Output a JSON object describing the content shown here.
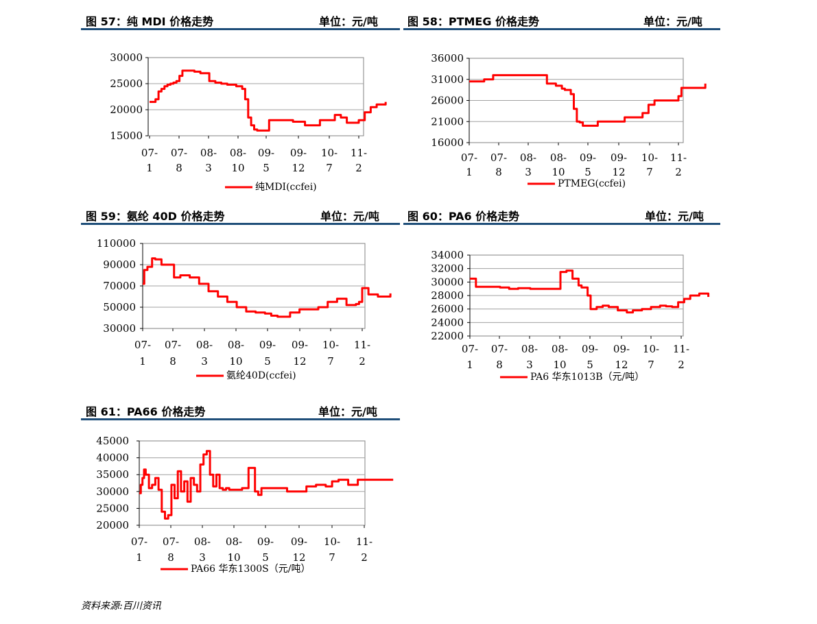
{
  "panels": [
    {
      "title": "图 57：纯 MDI 价格走势",
      "unit": "单位：元/吨"
    },
    {
      "title": "图 58：PTMEG 价格走势",
      "unit": "单位：元/吨"
    },
    {
      "title": "图 59：氨纶 40D 价格走势",
      "unit": "单位：元/吨"
    },
    {
      "title": "图 60：PA6 价格走势",
      "unit": "单位：元/吨"
    },
    {
      "title": "图 61：PA66 价格走势",
      "unit": "单位：元/吨"
    }
  ],
  "source": "资料来源:百川资讯",
  "chart_data": [
    {
      "type": "line",
      "title": "图 57：纯 MDI 价格走势",
      "categories": [
        [
          "07-",
          "1"
        ],
        [
          "07-",
          "8"
        ],
        [
          "08-",
          "3"
        ],
        [
          "08-",
          "10"
        ],
        [
          "09-",
          "5"
        ],
        [
          "09-",
          "12"
        ],
        [
          "10-",
          "7"
        ],
        [
          "11-",
          "2"
        ]
      ],
      "yticks": [
        "30000",
        "25000",
        "20000",
        "15000"
      ],
      "ylim": [
        15000,
        30000
      ],
      "grid": true,
      "legend_position": "bottom",
      "color": "#ff0000",
      "series": [
        {
          "name": "纯MDI(ccfei)",
          "x": [
            0,
            0.1,
            0.2,
            0.3,
            0.4,
            0.5,
            0.6,
            0.7,
            0.8,
            0.9,
            1.0,
            1.1,
            1.3,
            1.5,
            1.7,
            2.0,
            2.2,
            2.4,
            2.6,
            2.9,
            3.1,
            3.2,
            3.3,
            3.4,
            3.5,
            3.6,
            3.8,
            4.0,
            4.2,
            4.5,
            4.8,
            5.0,
            5.2,
            5.5,
            5.7,
            6.0,
            6.2,
            6.4,
            6.6,
            6.8,
            7.0,
            7.2,
            7.4,
            7.6,
            7.9
          ],
          "y": [
            21500,
            21500,
            22000,
            23500,
            24000,
            24500,
            24800,
            25000,
            25200,
            25500,
            26500,
            27500,
            27500,
            27300,
            27000,
            25500,
            25200,
            25000,
            24800,
            24500,
            24000,
            22000,
            18500,
            17000,
            16200,
            16000,
            16000,
            18000,
            18000,
            18000,
            17700,
            17700,
            17000,
            17000,
            18000,
            18000,
            19000,
            18500,
            17500,
            17500,
            18000,
            19500,
            20500,
            21000,
            21500
          ]
        }
      ]
    },
    {
      "type": "line",
      "title": "图 58：PTMEG 价格走势",
      "categories": [
        [
          "07-",
          "1"
        ],
        [
          "07-",
          "8"
        ],
        [
          "08-",
          "3"
        ],
        [
          "08-",
          "10"
        ],
        [
          "09-",
          "5"
        ],
        [
          "09-",
          "12"
        ],
        [
          "10-",
          "7"
        ],
        [
          "11-",
          "2"
        ]
      ],
      "yticks": [
        "36000",
        "31000",
        "26000",
        "21000",
        "16000"
      ],
      "ylim": [
        16000,
        36000
      ],
      "grid": true,
      "legend_position": "bottom",
      "color": "#ff0000",
      "series": [
        {
          "name": "PTMEG(ccfei)",
          "x": [
            0,
            0.3,
            0.5,
            0.7,
            0.8,
            1.5,
            2.0,
            2.4,
            2.6,
            2.9,
            3.1,
            3.2,
            3.3,
            3.4,
            3.5,
            3.6,
            3.7,
            3.8,
            4.0,
            4.3,
            4.6,
            4.9,
            5.2,
            5.5,
            5.8,
            6.0,
            6.2,
            6.4,
            6.8,
            6.9,
            7.0,
            7.1,
            7.3,
            7.6,
            7.9
          ],
          "y": [
            30500,
            30500,
            31000,
            31000,
            32000,
            32000,
            32000,
            32000,
            30000,
            29500,
            28800,
            28500,
            28500,
            27500,
            24000,
            21000,
            20800,
            20000,
            20000,
            21000,
            21000,
            21000,
            22000,
            22000,
            23000,
            25000,
            26000,
            26000,
            26000,
            26000,
            27000,
            29000,
            29000,
            29000,
            30000
          ]
        }
      ]
    },
    {
      "type": "line",
      "title": "图 59：氨纶 40D 价格走势",
      "categories": [
        [
          "07-",
          "1"
        ],
        [
          "07-",
          "8"
        ],
        [
          "08-",
          "3"
        ],
        [
          "08-",
          "10"
        ],
        [
          "09-",
          "5"
        ],
        [
          "09-",
          "12"
        ],
        [
          "10-",
          "7"
        ],
        [
          "11-",
          "2"
        ]
      ],
      "yticks": [
        "110000",
        "90000",
        "70000",
        "50000",
        "30000"
      ],
      "ylim": [
        30000,
        110000
      ],
      "grid": true,
      "legend_position": "bottom",
      "color": "#ff0000",
      "series": [
        {
          "name": "氨纶40D(ccfei)",
          "x": [
            0,
            0.05,
            0.15,
            0.3,
            0.4,
            0.6,
            1.0,
            1.2,
            1.5,
            1.8,
            2.1,
            2.4,
            2.7,
            3.0,
            3.3,
            3.6,
            3.9,
            4.1,
            4.3,
            4.7,
            5.0,
            5.3,
            5.6,
            5.9,
            6.2,
            6.5,
            6.8,
            6.9,
            7.0,
            7.2,
            7.5,
            7.9
          ],
          "y": [
            72000,
            85000,
            88000,
            96000,
            95000,
            90000,
            78000,
            80000,
            78000,
            72000,
            65000,
            60000,
            55000,
            50000,
            46000,
            45000,
            44000,
            42000,
            41000,
            45000,
            48000,
            48000,
            50000,
            55000,
            58000,
            52000,
            53000,
            55000,
            68000,
            62000,
            60000,
            63000
          ]
        }
      ]
    },
    {
      "type": "line",
      "title": "图 60：PA6 价格走势",
      "categories": [
        [
          "07-",
          "1"
        ],
        [
          "07-",
          "8"
        ],
        [
          "08-",
          "3"
        ],
        [
          "08-",
          "10"
        ],
        [
          "09-",
          "5"
        ],
        [
          "09-",
          "12"
        ],
        [
          "10-",
          "7"
        ],
        [
          "11-",
          "2"
        ]
      ],
      "yticks": [
        "34000",
        "32000",
        "30000",
        "28000",
        "26000",
        "24000",
        "22000"
      ],
      "ylim": [
        22000,
        34000
      ],
      "grid": true,
      "legend_position": "bottom",
      "color": "#ff0000",
      "series": [
        {
          "name": "PA6  华东1013B（元/吨）",
          "x": [
            0,
            0.2,
            0.4,
            0.7,
            1.0,
            1.3,
            1.6,
            2.0,
            2.4,
            2.8,
            3.0,
            3.2,
            3.4,
            3.6,
            3.7,
            3.9,
            4.0,
            4.2,
            4.4,
            4.6,
            4.9,
            5.2,
            5.4,
            5.7,
            6.0,
            6.3,
            6.5,
            6.7,
            6.9,
            7.1,
            7.3,
            7.6,
            7.9
          ],
          "y": [
            30500,
            29300,
            29300,
            29300,
            29200,
            29000,
            29100,
            29000,
            29000,
            29000,
            31500,
            31700,
            30500,
            29500,
            29200,
            28000,
            26000,
            26300,
            26500,
            26300,
            25800,
            25500,
            25800,
            26000,
            26300,
            26500,
            26400,
            26300,
            27000,
            27500,
            28000,
            28300,
            27800
          ]
        }
      ]
    },
    {
      "type": "line",
      "title": "图 61：PA66 价格走势",
      "categories": [
        [
          "07-",
          "1"
        ],
        [
          "07-",
          "8"
        ],
        [
          "08-",
          "3"
        ],
        [
          "08-",
          "10"
        ],
        [
          "09-",
          "5"
        ],
        [
          "09-",
          "12"
        ],
        [
          "10-",
          "7"
        ],
        [
          "11-",
          "2"
        ]
      ],
      "yticks": [
        "45000",
        "40000",
        "35000",
        "30000",
        "25000",
        "20000"
      ],
      "ylim": [
        20000,
        45000
      ],
      "grid": true,
      "legend_position": "bottom",
      "color": "#ff0000",
      "series": [
        {
          "name": "PA66  华东1300S（元/吨）",
          "x": [
            0,
            0.05,
            0.1,
            0.15,
            0.2,
            0.3,
            0.4,
            0.5,
            0.6,
            0.7,
            0.8,
            0.9,
            1.0,
            1.1,
            1.2,
            1.3,
            1.4,
            1.5,
            1.6,
            1.7,
            1.8,
            1.9,
            2.0,
            2.1,
            2.2,
            2.3,
            2.4,
            2.5,
            2.6,
            2.7,
            2.8,
            3.0,
            3.2,
            3.4,
            3.6,
            3.7,
            3.8,
            4.0,
            4.3,
            4.6,
            4.9,
            5.2,
            5.5,
            5.8,
            6.0,
            6.2,
            6.5,
            6.8,
            7.0,
            7.5,
            7.9
          ],
          "y": [
            29500,
            32000,
            34000,
            36500,
            35000,
            31000,
            32000,
            34000,
            30500,
            24000,
            22000,
            23000,
            32000,
            28000,
            36000,
            30000,
            33000,
            27000,
            34000,
            32000,
            30000,
            38000,
            41000,
            42000,
            35000,
            31500,
            35000,
            31000,
            30500,
            31000,
            30500,
            30500,
            31000,
            37000,
            30000,
            29000,
            31000,
            31000,
            31000,
            30000,
            30000,
            31500,
            32000,
            31500,
            33000,
            33500,
            32000,
            33500,
            33500,
            33500,
            33500
          ]
        }
      ]
    }
  ]
}
